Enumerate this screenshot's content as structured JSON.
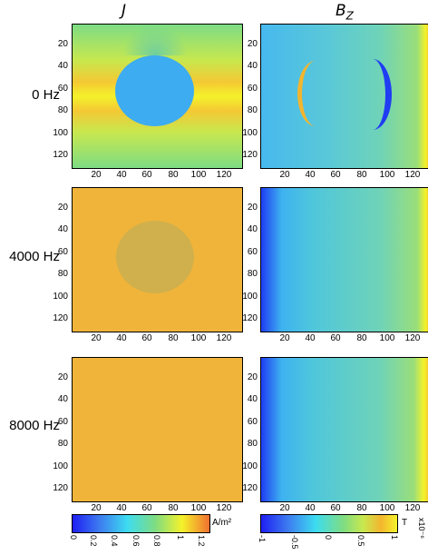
{
  "columns": [
    "J",
    "B",
    "Z"
  ],
  "rows": [
    "0 Hz",
    "4000 Hz",
    "8000 Hz"
  ],
  "ticks": {
    "y": [
      "20",
      "40",
      "60",
      "80",
      "100",
      "120"
    ],
    "x": [
      "20",
      "40",
      "60",
      "80",
      "100",
      "120"
    ]
  },
  "colorbars": {
    "j": {
      "unit": "A/m²",
      "ticks": [
        "0",
        "0.2",
        "0.4",
        "0.6",
        "0.8",
        "1",
        "1.2"
      ]
    },
    "b": {
      "unit": "T",
      "ticks": [
        "-1",
        "-0.5",
        "0",
        "0.5",
        "1"
      ],
      "exponent": "x10⁻⁶"
    }
  },
  "colors": {
    "jet_blue": "#1f3df2",
    "jet_cyan": "#3db2f0",
    "jet_green": "#7ddc84",
    "jet_yellow": "#f4f22a",
    "jet_orange": "#f3b52e"
  }
}
